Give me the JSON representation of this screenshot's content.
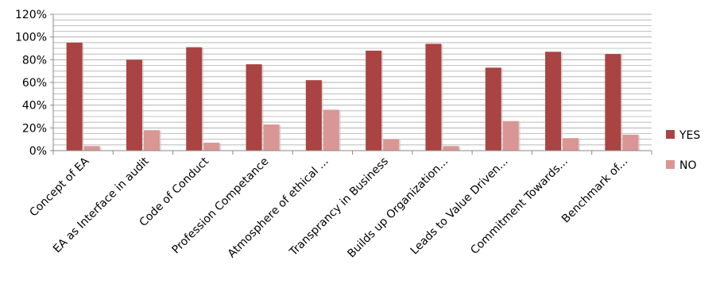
{
  "chart_data": {
    "type": "bar",
    "categories": [
      "Concept of EA",
      "EA as Interface in audit",
      "Code of Conduct",
      "Profession Competance",
      "Atmosphere of ethical ...",
      "Transprancy in Business",
      "Builds up Organization...",
      "Leads to Value Driven...",
      "Commitment Towards...",
      "Benchmark of..."
    ],
    "series": [
      {
        "name": "YES",
        "values": [
          95,
          80,
          91,
          76,
          62,
          88,
          94,
          73,
          87,
          85
        ]
      },
      {
        "name": "NO",
        "values": [
          4,
          18,
          7,
          23,
          36,
          10,
          4,
          26,
          11,
          14
        ]
      }
    ],
    "yticks": [
      "0%",
      "20%",
      "40%",
      "60%",
      "80%",
      "100%",
      "120%"
    ],
    "ylim": [
      0,
      120
    ],
    "grid": true,
    "legend": "right",
    "colors": {
      "YES": "#a94442",
      "NO": "#d99694",
      "grid": "#b0b0b0"
    }
  }
}
